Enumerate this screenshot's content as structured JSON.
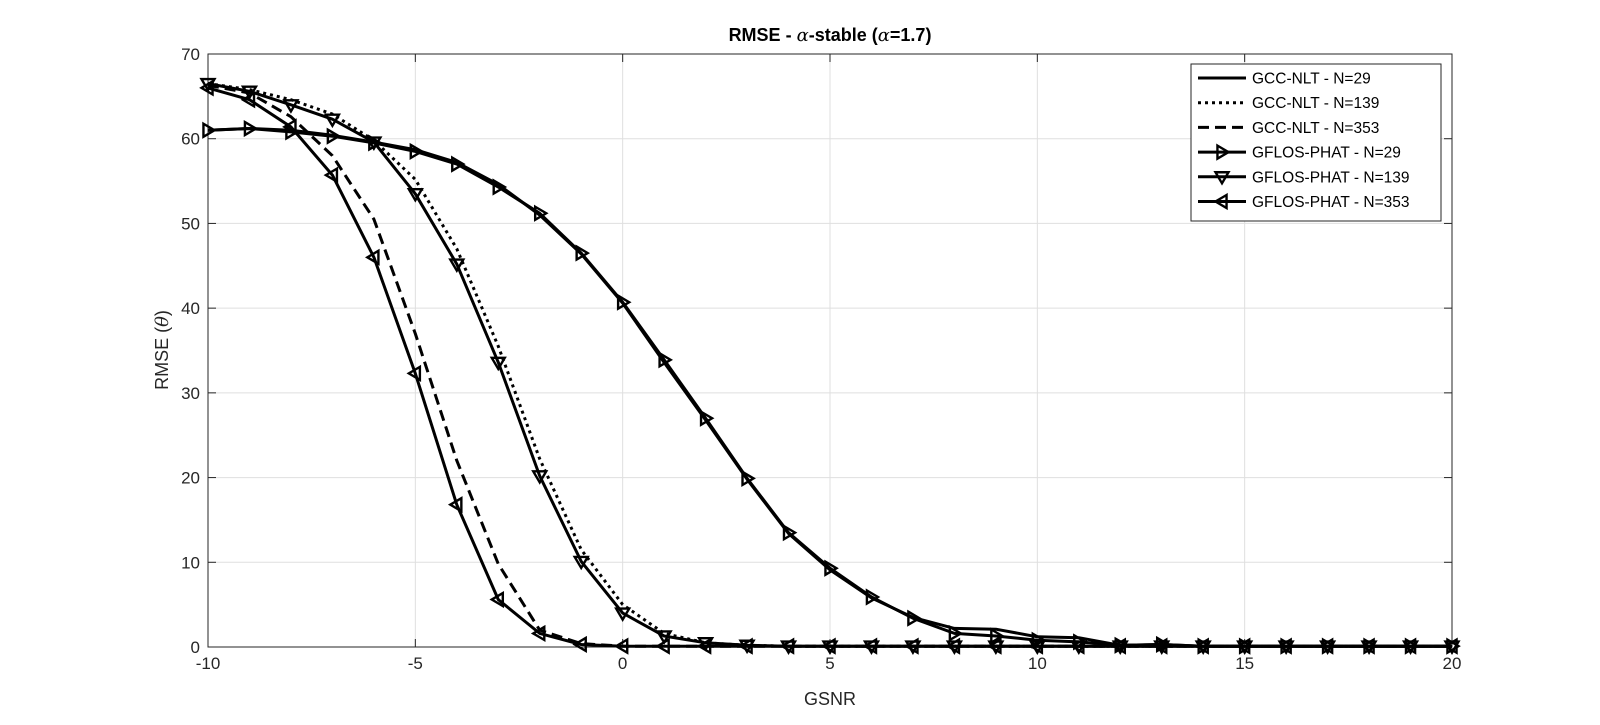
{
  "chart_data": {
    "type": "line",
    "title_prefix": "RMSE - ",
    "title_alpha": "α",
    "title_mid": "-stable (",
    "title_alpha2": "α",
    "title_suffix": "=1.7)",
    "xlabel": "GSNR",
    "ylabel_prefix": "RMSE (",
    "ylabel_symbol": "θ",
    "ylabel_suffix": ")",
    "xlim": [
      -10,
      20
    ],
    "ylim": [
      0,
      70
    ],
    "xticks": [
      "-10",
      "-5",
      "0",
      "5",
      "10",
      "15",
      "20"
    ],
    "yticks": [
      "0",
      "10",
      "20",
      "30",
      "40",
      "50",
      "60",
      "70"
    ],
    "grid": true,
    "legend_position": "top-right",
    "color": "#000000",
    "x": [
      -10,
      -9,
      -8,
      -7,
      -6,
      -5,
      -4,
      -3,
      -2,
      -1,
      0,
      1,
      2,
      3,
      4,
      5,
      6,
      7,
      8,
      9,
      10,
      11,
      12,
      13,
      14,
      15,
      16,
      17,
      18,
      19,
      20
    ],
    "series": [
      {
        "name": "GCC-NLT - N=29",
        "line": "solid",
        "marker": "none",
        "values": [
          61.0,
          61.2,
          61.0,
          60.4,
          59.6,
          58.7,
          57.2,
          54.6,
          51.0,
          46.4,
          40.6,
          33.6,
          26.8,
          19.8,
          13.4,
          9.1,
          5.8,
          3.5,
          2.2,
          2.1,
          1.2,
          1.1,
          0.2,
          0.3,
          0.1,
          0.1,
          0.1,
          0.1,
          0.1,
          0.1,
          0.1
        ]
      },
      {
        "name": "GCC-NLT - N=139",
        "line": "dotted",
        "marker": "none",
        "values": [
          66.5,
          65.8,
          64.6,
          62.9,
          59.8,
          55.2,
          47.0,
          35.5,
          22.2,
          11.5,
          5.0,
          1.6,
          0.5,
          0.2,
          0.1,
          0.1,
          0.1,
          0.1,
          0.1,
          0.1,
          0.1,
          0.1,
          0.1,
          0.1,
          0.1,
          0.1,
          0.1,
          0.1,
          0.1,
          0.1,
          0.1
        ]
      },
      {
        "name": "GCC-NLT - N=353",
        "line": "dashed",
        "marker": "none",
        "values": [
          66.3,
          65.4,
          62.6,
          58.0,
          50.5,
          37.0,
          22.0,
          9.8,
          2.0,
          0.4,
          0.1,
          0.1,
          0.1,
          0.1,
          0.1,
          0.1,
          0.1,
          0.1,
          0.1,
          0.1,
          0.1,
          0.1,
          0.1,
          0.1,
          0.1,
          0.1,
          0.1,
          0.1,
          0.1,
          0.1,
          0.1
        ]
      },
      {
        "name": "GFLOS-PHAT - N=29",
        "line": "solid",
        "marker": "triangle-right",
        "values": [
          61.0,
          61.2,
          60.8,
          60.3,
          59.5,
          58.5,
          57.0,
          54.3,
          51.2,
          46.5,
          40.7,
          33.9,
          27.0,
          19.9,
          13.5,
          9.3,
          5.9,
          3.4,
          1.6,
          1.3,
          0.8,
          0.6,
          0.2,
          0.3,
          0.1,
          0.1,
          0.1,
          0.1,
          0.1,
          0.1,
          0.1
        ]
      },
      {
        "name": "GFLOS-PHAT - N=139",
        "line": "solid",
        "marker": "triangle-down",
        "values": [
          66.5,
          65.6,
          64.0,
          62.3,
          59.6,
          53.5,
          45.2,
          33.6,
          20.2,
          10.1,
          4.0,
          1.3,
          0.5,
          0.2,
          0.1,
          0.1,
          0.1,
          0.1,
          0.1,
          0.1,
          0.1,
          0.1,
          0.1,
          0.1,
          0.1,
          0.1,
          0.1,
          0.1,
          0.1,
          0.1,
          0.1
        ]
      },
      {
        "name": "GFLOS-PHAT - N=353",
        "line": "solid",
        "marker": "triangle-left",
        "values": [
          66.0,
          64.6,
          61.4,
          55.7,
          46.0,
          32.3,
          16.8,
          5.6,
          1.6,
          0.3,
          0.1,
          0.1,
          0.1,
          0.1,
          0.1,
          0.1,
          0.1,
          0.1,
          0.1,
          0.1,
          0.1,
          0.1,
          0.1,
          0.1,
          0.1,
          0.1,
          0.1,
          0.1,
          0.1,
          0.1,
          0.1
        ]
      }
    ]
  }
}
